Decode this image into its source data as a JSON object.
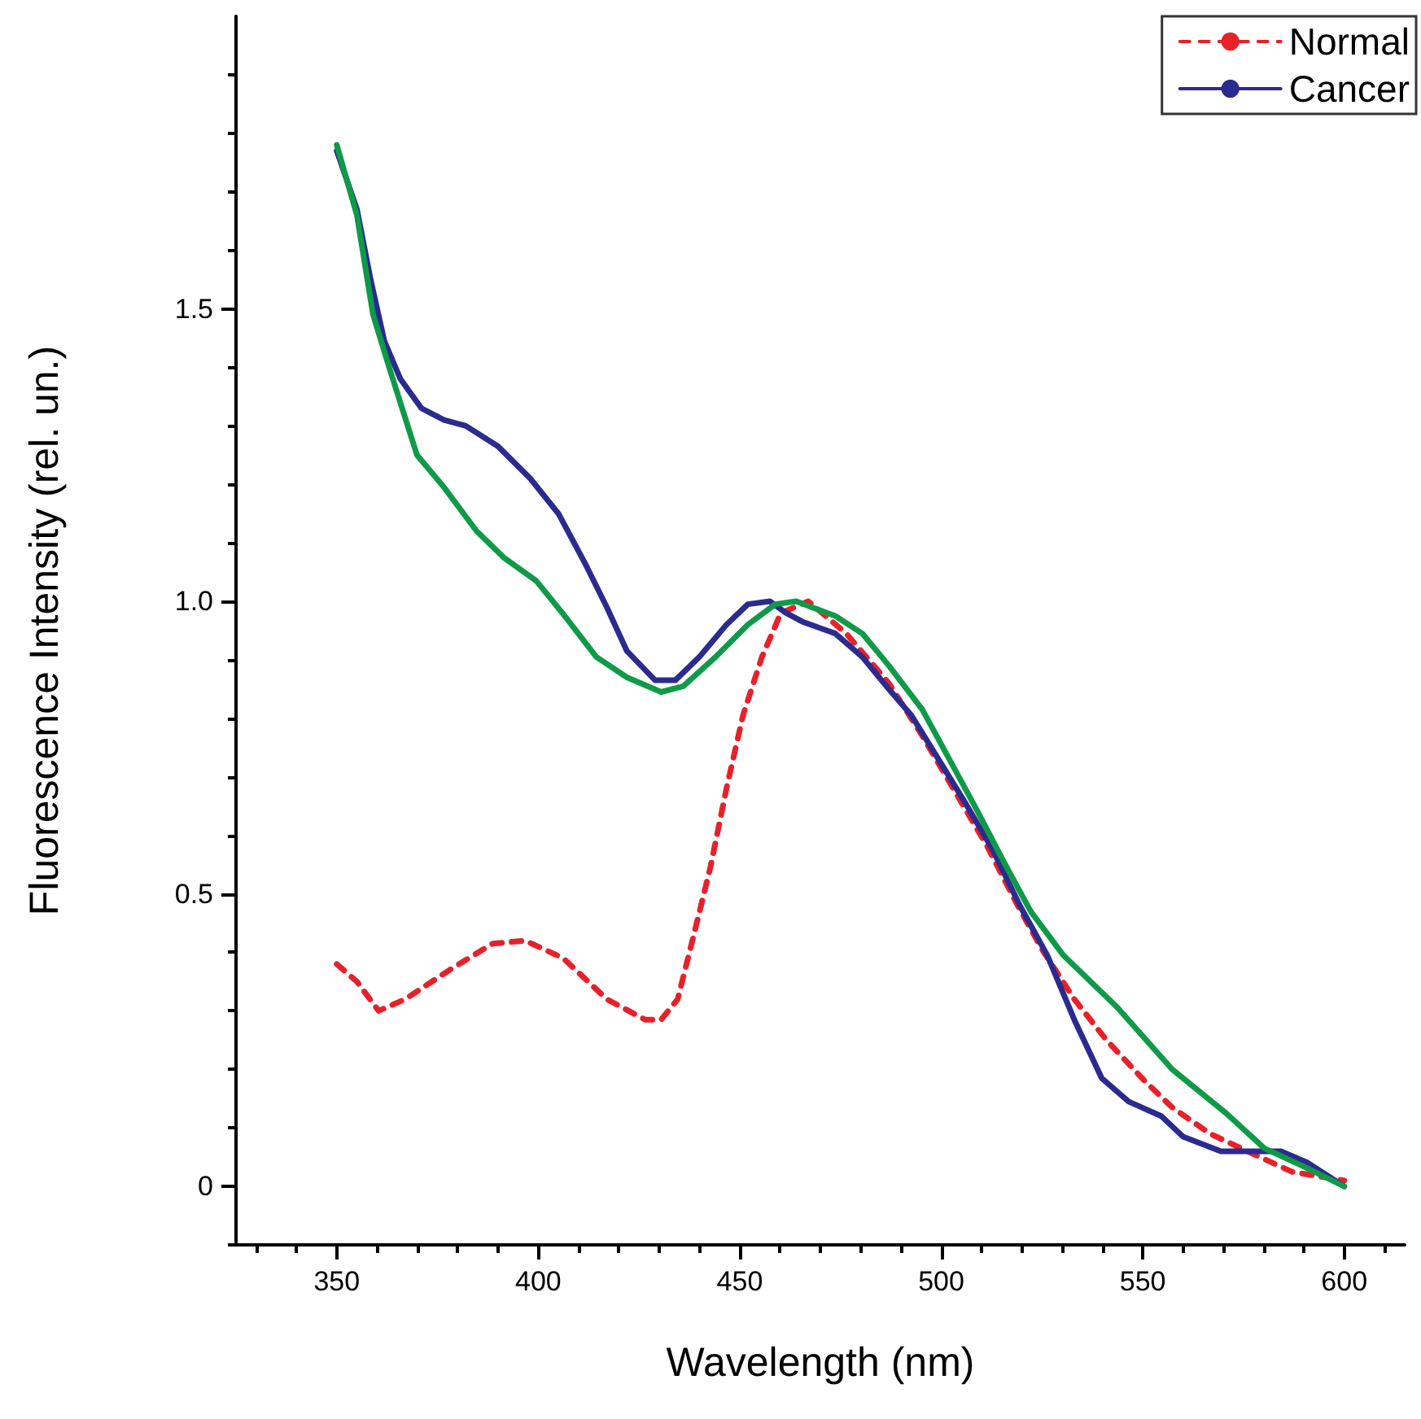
{
  "chart_data": {
    "type": "line",
    "xlabel": "Wavelength (nm)",
    "ylabel": "Fluorescence Intensity (rel. un.)",
    "xlim": [
      325,
      615
    ],
    "xticks": [
      350,
      400,
      450,
      500,
      550,
      600
    ],
    "ylim": [
      -0.1,
      2.0
    ],
    "yticks": [
      {
        "value": 0,
        "label": "0"
      },
      {
        "value": 0.5,
        "label": "0.5"
      },
      {
        "value": 1,
        "label": "1.0"
      },
      {
        "value": 1.5,
        "label": "1.5"
      }
    ],
    "grid": false,
    "legend": "top right",
    "marker": "none",
    "series": [
      {
        "name": "Normal",
        "color": "#e8202a",
        "line_style": "dashed",
        "x": [
          350,
          355,
          360.4,
          367,
          378,
          388.7,
          396.8,
          406.2,
          417,
          426.5,
          430.5,
          434.6,
          438.6,
          442.7,
          446.7,
          450.8,
          455.5,
          460.2,
          467,
          476.4,
          487,
          495.3,
          503.4,
          511.5,
          518.2,
          525,
          533,
          541,
          550.5,
          557.3,
          566.7,
          577.5,
          587,
          600
        ],
        "values": [
          0.38,
          0.35,
          0.3,
          0.32,
          0.37,
          0.415,
          0.42,
          0.39,
          0.32,
          0.285,
          0.285,
          0.32,
          0.43,
          0.545,
          0.68,
          0.805,
          0.905,
          0.98,
          1.0,
          0.945,
          0.86,
          0.77,
          0.675,
          0.58,
          0.49,
          0.405,
          0.32,
          0.25,
          0.18,
          0.135,
          0.09,
          0.055,
          0.025,
          0.01
        ]
      },
      {
        "name": "Cancer",
        "color": "#2b2b8f",
        "line_style": "solid",
        "x": [
          350,
          355,
          358.4,
          361.8,
          365.8,
          371,
          376.6,
          382,
          390,
          398,
          405,
          411.6,
          417,
          422,
          429,
          434,
          440,
          446.7,
          452,
          457.5,
          461.5,
          465.6,
          473.7,
          480.4,
          487,
          492.6,
          499.3,
          506,
          512.8,
          519.5,
          526.3,
          533,
          539.8,
          546.5,
          554.6,
          560,
          569.4,
          578.8,
          584.3,
          591,
          600
        ],
        "values": [
          1.77,
          1.67,
          1.55,
          1.445,
          1.38,
          1.33,
          1.31,
          1.3,
          1.265,
          1.21,
          1.15,
          1.065,
          0.99,
          0.915,
          0.865,
          0.865,
          0.905,
          0.96,
          0.995,
          1.0,
          0.98,
          0.965,
          0.945,
          0.905,
          0.85,
          0.805,
          0.73,
          0.655,
          0.575,
          0.48,
          0.395,
          0.285,
          0.185,
          0.145,
          0.12,
          0.085,
          0.06,
          0.06,
          0.06,
          0.04,
          0
        ]
      },
      {
        "color": "#0f9a48",
        "line_style": "solid",
        "x": [
          350,
          355,
          359,
          363,
          369.9,
          376.6,
          384.7,
          391.4,
          399.5,
          406,
          414.4,
          422,
          430.5,
          436,
          444,
          452,
          458.8,
          464,
          473.7,
          480.4,
          487,
          495.3,
          502,
          508.7,
          515.5,
          522.2,
          530.3,
          543.8,
          557.3,
          570.7,
          580.2,
          589.6,
          600
        ],
        "values": [
          1.78,
          1.66,
          1.49,
          1.4,
          1.25,
          1.195,
          1.12,
          1.075,
          1.035,
          0.98,
          0.905,
          0.87,
          0.845,
          0.855,
          0.905,
          0.96,
          0.995,
          1.0,
          0.975,
          0.945,
          0.89,
          0.815,
          0.73,
          0.645,
          0.555,
          0.47,
          0.395,
          0.305,
          0.2,
          0.125,
          0.065,
          0.035,
          0
        ]
      }
    ]
  }
}
